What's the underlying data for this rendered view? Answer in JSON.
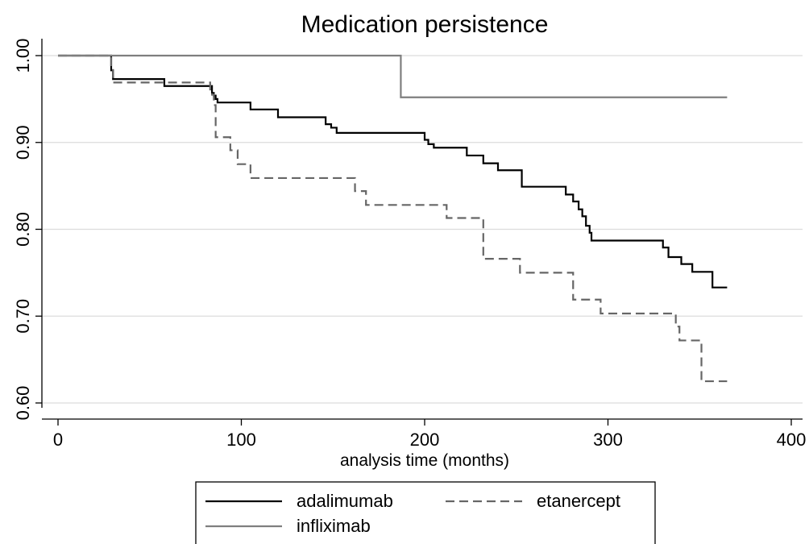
{
  "chart_data": {
    "type": "line",
    "step": true,
    "title": "Medication persistence",
    "xlabel": "analysis time (months)",
    "ylabel": "",
    "xlim": [
      0,
      400
    ],
    "ylim": [
      0.6,
      1.0
    ],
    "xticks": [
      0,
      100,
      200,
      300,
      400
    ],
    "yticks": [
      0.6,
      0.7,
      0.8,
      0.9,
      1.0
    ],
    "xtick_labels": [
      "0",
      "100",
      "200",
      "300",
      "400"
    ],
    "ytick_labels": [
      "0.60",
      "0.70",
      "0.80",
      "0.90",
      "1.00"
    ],
    "grid": "horizontal",
    "legend_position": "bottom",
    "series": [
      {
        "name": "adalimumab",
        "color": "#000000",
        "dash": "solid",
        "x": [
          0,
          29,
          30,
          58,
          84,
          85,
          86,
          87,
          105,
          120,
          146,
          149,
          152,
          200,
          202,
          205,
          223,
          232,
          240,
          253,
          277,
          281,
          284,
          286,
          288,
          290,
          291,
          330,
          333,
          340,
          346,
          357,
          365
        ],
        "y": [
          1.0,
          0.983,
          0.973,
          0.965,
          0.957,
          0.954,
          0.95,
          0.946,
          0.938,
          0.929,
          0.921,
          0.917,
          0.911,
          0.903,
          0.898,
          0.894,
          0.885,
          0.876,
          0.868,
          0.849,
          0.84,
          0.832,
          0.823,
          0.815,
          0.804,
          0.796,
          0.787,
          0.779,
          0.768,
          0.76,
          0.751,
          0.733,
          0.733
        ]
      },
      {
        "name": "etanercept",
        "color": "#666666",
        "dash": "dashed",
        "x": [
          0,
          29,
          30,
          83,
          84,
          85,
          86,
          94,
          98,
          105,
          162,
          168,
          212,
          232,
          252,
          281,
          296,
          337,
          339,
          351,
          360,
          365
        ],
        "y": [
          1.0,
          0.985,
          0.969,
          0.961,
          0.955,
          0.943,
          0.906,
          0.891,
          0.875,
          0.859,
          0.844,
          0.828,
          0.813,
          0.766,
          0.75,
          0.719,
          0.703,
          0.688,
          0.672,
          0.625,
          0.625,
          0.625
        ]
      },
      {
        "name": "infliximab",
        "color": "#7f7f7f",
        "dash": "solid",
        "x": [
          0,
          187,
          365
        ],
        "y": [
          1.0,
          0.952,
          0.952
        ]
      }
    ]
  }
}
